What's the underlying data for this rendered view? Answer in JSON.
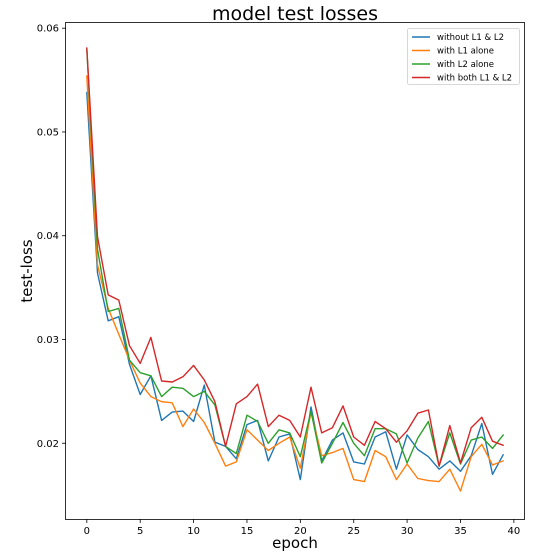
{
  "chart_data": {
    "type": "line",
    "title": "model test losses",
    "xlabel": "epoch",
    "ylabel": "test-loss",
    "xlim": [
      -1.95,
      40.95
    ],
    "ylim": [
      0.0127,
      0.0605
    ],
    "xticks": [
      0,
      5,
      10,
      15,
      20,
      25,
      30,
      35,
      40
    ],
    "yticks": [
      0.02,
      0.03,
      0.04,
      0.05,
      0.06
    ],
    "ytick_labels": [
      "0.02",
      "0.03",
      "0.04",
      "0.05",
      "0.06"
    ],
    "legend_position": "top-right",
    "grid": false,
    "x": [
      0,
      1,
      2,
      3,
      4,
      5,
      6,
      7,
      8,
      9,
      10,
      11,
      12,
      13,
      14,
      15,
      16,
      17,
      18,
      19,
      20,
      21,
      22,
      23,
      24,
      25,
      26,
      27,
      28,
      29,
      30,
      31,
      32,
      33,
      34,
      35,
      36,
      37,
      38,
      39
    ],
    "series": [
      {
        "name": "without L1 & L2",
        "color": "#1f77b4",
        "values": [
          0.0538,
          0.0364,
          0.0318,
          0.0322,
          0.0276,
          0.0247,
          0.0265,
          0.0222,
          0.023,
          0.0231,
          0.0221,
          0.0256,
          0.0201,
          0.0197,
          0.0185,
          0.0218,
          0.0222,
          0.0183,
          0.0206,
          0.0209,
          0.0165,
          0.0235,
          0.0183,
          0.0203,
          0.021,
          0.0182,
          0.018,
          0.0206,
          0.0211,
          0.0175,
          0.0208,
          0.0194,
          0.0187,
          0.0175,
          0.0183,
          0.0173,
          0.0188,
          0.0219,
          0.017,
          0.0189
        ]
      },
      {
        "name": "with L1 alone",
        "color": "#ff7f0e",
        "values": [
          0.0554,
          0.0372,
          0.033,
          0.0305,
          0.028,
          0.0258,
          0.0245,
          0.024,
          0.0239,
          0.0216,
          0.0233,
          0.022,
          0.02,
          0.0178,
          0.0182,
          0.0213,
          0.0203,
          0.0193,
          0.02,
          0.0206,
          0.0176,
          0.023,
          0.0188,
          0.0191,
          0.0195,
          0.0165,
          0.0163,
          0.0193,
          0.0187,
          0.0165,
          0.018,
          0.0166,
          0.0164,
          0.0163,
          0.0175,
          0.0154,
          0.0187,
          0.0199,
          0.0179,
          0.0183
        ]
      },
      {
        "name": "with L2 alone",
        "color": "#2ca02c",
        "values": [
          0.058,
          0.0387,
          0.0327,
          0.033,
          0.028,
          0.0268,
          0.0265,
          0.0245,
          0.0254,
          0.0253,
          0.0245,
          0.025,
          0.0237,
          0.0197,
          0.019,
          0.0227,
          0.0221,
          0.02,
          0.0213,
          0.021,
          0.0187,
          0.0231,
          0.0181,
          0.02,
          0.022,
          0.02,
          0.0188,
          0.0214,
          0.0214,
          0.0209,
          0.0181,
          0.0205,
          0.0221,
          0.0178,
          0.021,
          0.018,
          0.0203,
          0.0206,
          0.0195,
          0.0208
        ]
      },
      {
        "name": "with both L1 & L2",
        "color": "#d62728",
        "values": [
          0.0581,
          0.0399,
          0.0343,
          0.0338,
          0.0294,
          0.0277,
          0.0302,
          0.026,
          0.0259,
          0.0264,
          0.0275,
          0.0261,
          0.024,
          0.0197,
          0.0238,
          0.0245,
          0.0257,
          0.0216,
          0.0227,
          0.0222,
          0.0206,
          0.0254,
          0.021,
          0.0215,
          0.0236,
          0.0206,
          0.0198,
          0.0221,
          0.0214,
          0.0201,
          0.0212,
          0.0229,
          0.0232,
          0.0178,
          0.0217,
          0.0181,
          0.0215,
          0.0225,
          0.0202,
          0.0198
        ]
      }
    ]
  }
}
